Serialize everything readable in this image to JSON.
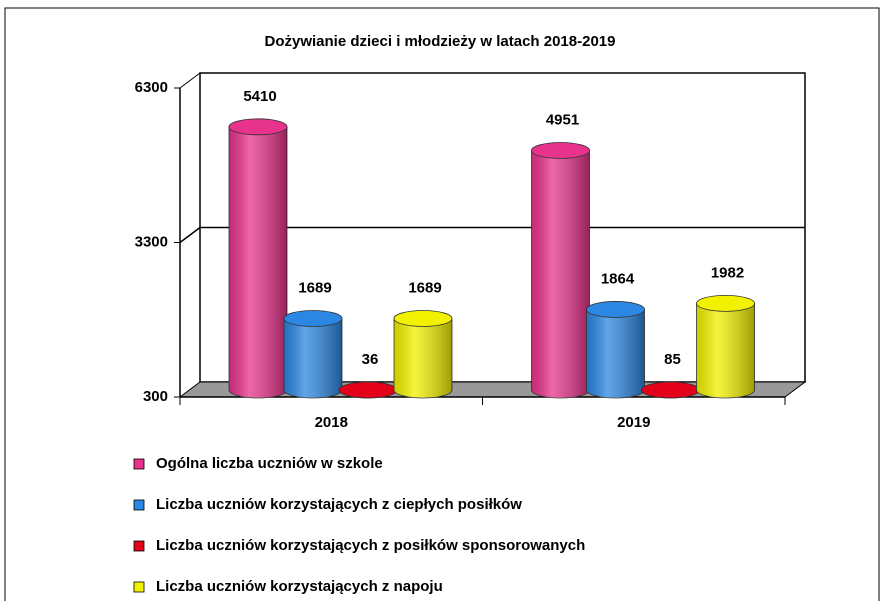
{
  "chart_data": {
    "type": "bar",
    "title": "Dożywianie dzieci i młodzieży w latach 2018-2019",
    "categories": [
      "2018",
      "2019"
    ],
    "series": [
      {
        "name": "Ogólna liczba uczniów w szkole",
        "color": "#e8338c",
        "values": [
          5410,
          4951
        ]
      },
      {
        "name": "Liczba uczniów korzystających z ciepłych posiłków",
        "color": "#2b87e3",
        "values": [
          1689,
          1864
        ]
      },
      {
        "name": "Liczba uczniów korzystających z posiłków sponsorowanych",
        "color": "#e3001b",
        "values": [
          36,
          85
        ]
      },
      {
        "name": "Liczba uczniów korzystających z napoju",
        "color": "#f2f200",
        "values": [
          1689,
          1982
        ]
      }
    ],
    "ylim": [
      300,
      6300
    ],
    "yticks": [
      300,
      3300,
      6300
    ],
    "grid": true,
    "legend": "bottom"
  }
}
